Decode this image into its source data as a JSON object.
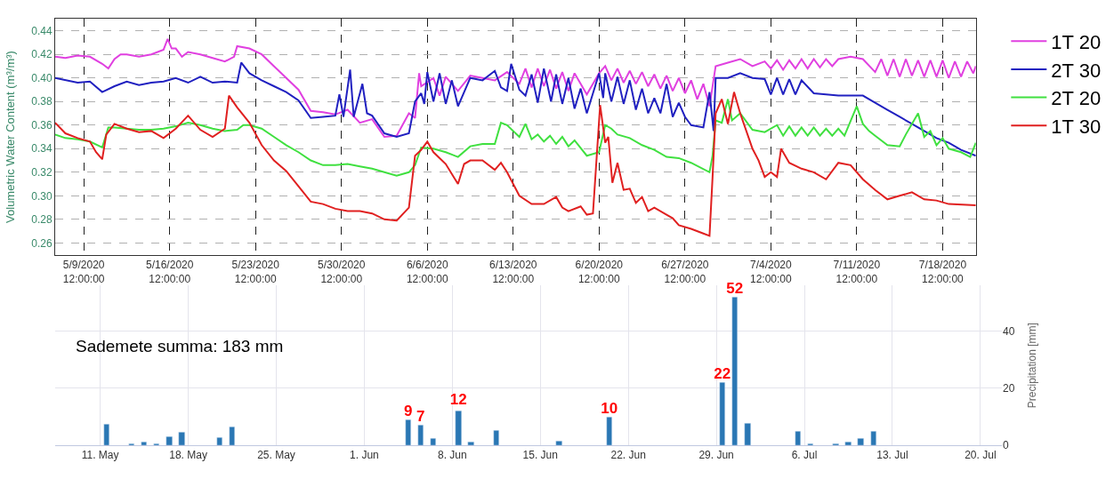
{
  "chart_data": [
    {
      "type": "line",
      "ylabel": "Volumetric Water Content (m³/m³)",
      "xlim": [
        "2020-05-07T04:00",
        "2020-07-21T05:00"
      ],
      "xticks": [
        {
          "value": "2020-05-09T12:00",
          "label": "5/9/2020\n12:00:00"
        },
        {
          "value": "2020-05-16T12:00",
          "label": "5/16/2020\n12:00:00"
        },
        {
          "value": "2020-05-23T12:00",
          "label": "5/23/2020\n12:00:00"
        },
        {
          "value": "2020-05-30T12:00",
          "label": "5/30/2020\n12:00:00"
        },
        {
          "value": "2020-06-06T12:00",
          "label": "6/6/2020\n12:00:00"
        },
        {
          "value": "2020-06-13T12:00",
          "label": "6/13/2020\n12:00:00"
        },
        {
          "value": "2020-06-20T12:00",
          "label": "6/20/2020\n12:00:00"
        },
        {
          "value": "2020-06-27T12:00",
          "label": "6/27/2020\n12:00:00"
        },
        {
          "value": "2020-07-04T12:00",
          "label": "7/4/2020\n12:00:00"
        },
        {
          "value": "2020-07-11T12:00",
          "label": "7/11/2020\n12:00:00"
        },
        {
          "value": "2020-07-18T12:00",
          "label": "7/18/2020\n12:00:00"
        }
      ],
      "ylim": [
        0.25,
        0.45
      ],
      "yticks": [
        {
          "value": 0.26,
          "label": "0.26"
        },
        {
          "value": 0.28,
          "label": "0.28"
        },
        {
          "value": 0.3,
          "label": "0.30"
        },
        {
          "value": 0.32,
          "label": "0.32"
        },
        {
          "value": 0.34,
          "label": "0.34"
        },
        {
          "value": 0.36,
          "label": "0.36"
        },
        {
          "value": 0.38,
          "label": "0.38"
        },
        {
          "value": 0.4,
          "label": "0.40"
        },
        {
          "value": 0.42,
          "label": "0.42"
        },
        {
          "value": 0.44,
          "label": "0.44"
        }
      ],
      "grid": true,
      "legend": "right",
      "line_style": "solid",
      "series": [
        {
          "name": "1T 20",
          "color": "#e040e0",
          "x": [
            "2020-05-07T04:00",
            "2020-05-08",
            "2020-05-09",
            "2020-05-10",
            "2020-05-11",
            "2020-05-11T12:00",
            "2020-05-12",
            "2020-05-12T12:00",
            "2020-05-13",
            "2020-05-14",
            "2020-05-15",
            "2020-05-16",
            "2020-05-16T08:00",
            "2020-05-16T16:00",
            "2020-05-17",
            "2020-05-17T12:00",
            "2020-05-18",
            "2020-05-19",
            "2020-05-20",
            "2020-05-21",
            "2020-05-21T18:00",
            "2020-05-22",
            "2020-05-23",
            "2020-05-24",
            "2020-05-25",
            "2020-05-26",
            "2020-05-27",
            "2020-05-28",
            "2020-05-29",
            "2020-05-30",
            "2020-05-31",
            "2020-06-01",
            "2020-06-02",
            "2020-06-03",
            "2020-06-04",
            "2020-06-05",
            "2020-06-05T12:00",
            "2020-06-05T20:00",
            "2020-06-06",
            "2020-06-07",
            "2020-06-07T12:00",
            "2020-06-08",
            "2020-06-09",
            "2020-06-10",
            "2020-06-11",
            "2020-06-12",
            "2020-06-13",
            "2020-06-14",
            "2020-06-14T12:00",
            "2020-06-15",
            "2020-06-15T12:00",
            "2020-06-16",
            "2020-06-16T12:00",
            "2020-06-17",
            "2020-06-17T12:00",
            "2020-06-18",
            "2020-06-18T12:00",
            "2020-06-19T12:00",
            "2020-06-20T12:00",
            "2020-06-21",
            "2020-06-21T12:00",
            "2020-06-22",
            "2020-06-22T12:00",
            "2020-06-23",
            "2020-06-23T12:00",
            "2020-06-24",
            "2020-06-24T12:00",
            "2020-06-25",
            "2020-06-25T12:00",
            "2020-06-26",
            "2020-06-26T12:00",
            "2020-06-27",
            "2020-06-27T12:00",
            "2020-06-28",
            "2020-06-28T12:00",
            "2020-06-29",
            "2020-06-29T12:00",
            "2020-06-30",
            "2020-07-01",
            "2020-07-02",
            "2020-07-03",
            "2020-07-04",
            "2020-07-04T12:00",
            "2020-07-05",
            "2020-07-05T12:00",
            "2020-07-06",
            "2020-07-06T12:00",
            "2020-07-07",
            "2020-07-07T12:00",
            "2020-07-08",
            "2020-07-08T12:00",
            "2020-07-09",
            "2020-07-09T12:00",
            "2020-07-10",
            "2020-07-11",
            "2020-07-12",
            "2020-07-13",
            "2020-07-13T12:00",
            "2020-07-14",
            "2020-07-14T12:00",
            "2020-07-15",
            "2020-07-15T12:00",
            "2020-07-16",
            "2020-07-16T12:00",
            "2020-07-17",
            "2020-07-17T12:00",
            "2020-07-18",
            "2020-07-18T12:00",
            "2020-07-19",
            "2020-07-19T12:00",
            "2020-07-20",
            "2020-07-20T12:00",
            "2020-07-21",
            "2020-07-21T05:00"
          ],
          "values": [
            0.418,
            0.417,
            0.419,
            0.418,
            0.412,
            0.408,
            0.416,
            0.42,
            0.42,
            0.418,
            0.42,
            0.424,
            0.433,
            0.425,
            0.425,
            0.418,
            0.422,
            0.42,
            0.417,
            0.414,
            0.418,
            0.427,
            0.425,
            0.42,
            0.41,
            0.4,
            0.39,
            0.372,
            0.371,
            0.369,
            0.373,
            0.362,
            0.365,
            0.35,
            0.351,
            0.37,
            0.366,
            0.404,
            0.393,
            0.4,
            0.385,
            0.401,
            0.389,
            0.402,
            0.4,
            0.398,
            0.405,
            0.395,
            0.408,
            0.392,
            0.408,
            0.393,
            0.407,
            0.391,
            0.405,
            0.389,
            0.404,
            0.386,
            0.404,
            0.41,
            0.398,
            0.408,
            0.396,
            0.406,
            0.395,
            0.405,
            0.393,
            0.403,
            0.391,
            0.402,
            0.389,
            0.4,
            0.387,
            0.398,
            0.382,
            0.395,
            0.376,
            0.41,
            0.413,
            0.416,
            0.41,
            0.414,
            0.408,
            0.415,
            0.407,
            0.415,
            0.408,
            0.416,
            0.408,
            0.416,
            0.409,
            0.416,
            0.41,
            0.416,
            0.418,
            0.416,
            0.405,
            0.416,
            0.402,
            0.416,
            0.401,
            0.416,
            0.402,
            0.415,
            0.401,
            0.415,
            0.401,
            0.415,
            0.4,
            0.414,
            0.401,
            0.414,
            0.404,
            0.41
          ]
        },
        {
          "name": "2T 30",
          "color": "#2020c0",
          "x": [
            "2020-05-07T04:00",
            "2020-05-09",
            "2020-05-10",
            "2020-05-11",
            "2020-05-12",
            "2020-05-13",
            "2020-05-14",
            "2020-05-15",
            "2020-05-16",
            "2020-05-17",
            "2020-05-18",
            "2020-05-19",
            "2020-05-20",
            "2020-05-21",
            "2020-05-22",
            "2020-05-22T08:00",
            "2020-05-23",
            "2020-05-24",
            "2020-05-25",
            "2020-05-26",
            "2020-05-27",
            "2020-05-28",
            "2020-05-29",
            "2020-05-30",
            "2020-05-30T08:00",
            "2020-05-30T16:00",
            "2020-05-31T05:00",
            "2020-05-31T12:00",
            "2020-06-01T05:00",
            "2020-06-01T14:00",
            "2020-06-02",
            "2020-06-03",
            "2020-06-04",
            "2020-06-05",
            "2020-06-05T12:00",
            "2020-06-06",
            "2020-06-06T06:00",
            "2020-06-06T12:00",
            "2020-06-07",
            "2020-06-07T12:00",
            "2020-06-08",
            "2020-06-08T12:00",
            "2020-06-09",
            "2020-06-10",
            "2020-06-11",
            "2020-06-12",
            "2020-06-12T12:00",
            "2020-06-13",
            "2020-06-13T08:00",
            "2020-06-14",
            "2020-06-14T12:00",
            "2020-06-15",
            "2020-06-15T12:00",
            "2020-06-16",
            "2020-06-16T14:00",
            "2020-06-17",
            "2020-06-17T12:00",
            "2020-06-18",
            "2020-06-18T12:00",
            "2020-06-19",
            "2020-06-19T12:00",
            "2020-06-20T12:00",
            "2020-06-20T20:00",
            "2020-06-21",
            "2020-06-21T12:00",
            "2020-06-22",
            "2020-06-22T12:00",
            "2020-06-23",
            "2020-06-23T12:00",
            "2020-06-24",
            "2020-06-24T12:00",
            "2020-06-25",
            "2020-06-25T12:00",
            "2020-06-26",
            "2020-06-26T12:00",
            "2020-06-27",
            "2020-06-27T12:00",
            "2020-06-28",
            "2020-06-29",
            "2020-06-29T12:00",
            "2020-06-29T20:00",
            "2020-06-30",
            "2020-07-01",
            "2020-07-02",
            "2020-07-03",
            "2020-07-04",
            "2020-07-04T12:00",
            "2020-07-05",
            "2020-07-05T12:00",
            "2020-07-06",
            "2020-07-06T12:00",
            "2020-07-07",
            "2020-07-08",
            "2020-07-09",
            "2020-07-10",
            "2020-07-11",
            "2020-07-12",
            "2020-07-13",
            "2020-07-14",
            "2020-07-15",
            "2020-07-16",
            "2020-07-17",
            "2020-07-18",
            "2020-07-19",
            "2020-07-20",
            "2020-07-21T05:00"
          ],
          "values": [
            0.4,
            0.396,
            0.397,
            0.388,
            0.393,
            0.397,
            0.394,
            0.396,
            0.397,
            0.4,
            0.396,
            0.401,
            0.396,
            0.397,
            0.396,
            0.413,
            0.404,
            0.398,
            0.393,
            0.388,
            0.381,
            0.366,
            0.367,
            0.368,
            0.386,
            0.367,
            0.407,
            0.367,
            0.395,
            0.37,
            0.368,
            0.353,
            0.35,
            0.353,
            0.38,
            0.387,
            0.378,
            0.405,
            0.38,
            0.404,
            0.378,
            0.398,
            0.376,
            0.4,
            0.398,
            0.406,
            0.392,
            0.389,
            0.412,
            0.39,
            0.385,
            0.403,
            0.379,
            0.408,
            0.38,
            0.403,
            0.378,
            0.4,
            0.374,
            0.391,
            0.37,
            0.404,
            0.383,
            0.404,
            0.38,
            0.401,
            0.378,
            0.398,
            0.373,
            0.391,
            0.37,
            0.383,
            0.37,
            0.395,
            0.367,
            0.379,
            0.367,
            0.36,
            0.358,
            0.388,
            0.355,
            0.4,
            0.4,
            0.404,
            0.4,
            0.399,
            0.386,
            0.4,
            0.386,
            0.399,
            0.386,
            0.398,
            0.387,
            0.386,
            0.385,
            0.385,
            0.385,
            0.379,
            0.373,
            0.367,
            0.361,
            0.355,
            0.349,
            0.345,
            0.339,
            0.334
          ]
        },
        {
          "name": "2T 20",
          "color": "#40e040",
          "x": [
            "2020-05-07T04:00",
            "2020-05-08",
            "2020-05-09",
            "2020-05-10",
            "2020-05-11",
            "2020-05-11T12:00",
            "2020-05-12",
            "2020-05-13",
            "2020-05-14",
            "2020-05-15",
            "2020-05-16",
            "2020-05-17",
            "2020-05-18",
            "2020-05-19",
            "2020-05-20",
            "2020-05-21",
            "2020-05-22",
            "2020-05-22T12:00",
            "2020-05-23",
            "2020-05-24",
            "2020-05-25",
            "2020-05-26",
            "2020-05-27",
            "2020-05-28",
            "2020-05-29",
            "2020-05-30",
            "2020-05-31",
            "2020-06-01",
            "2020-06-02",
            "2020-06-03",
            "2020-06-04",
            "2020-06-05",
            "2020-06-05T12:00",
            "2020-06-06",
            "2020-06-07",
            "2020-06-08",
            "2020-06-09",
            "2020-06-10",
            "2020-06-11",
            "2020-06-12",
            "2020-06-12T12:00",
            "2020-06-13",
            "2020-06-14",
            "2020-06-14T12:00",
            "2020-06-15",
            "2020-06-15T12:00",
            "2020-06-16",
            "2020-06-16T12:00",
            "2020-06-17",
            "2020-06-17T12:00",
            "2020-06-18",
            "2020-06-18T12:00",
            "2020-06-19T12:00",
            "2020-06-20T12:00",
            "2020-06-21",
            "2020-06-21T12:00",
            "2020-06-22",
            "2020-06-23",
            "2020-06-24",
            "2020-06-25",
            "2020-06-26",
            "2020-06-27",
            "2020-06-28",
            "2020-06-29T12:00",
            "2020-06-29T18:00",
            "2020-06-30",
            "2020-06-30T12:00",
            "2020-07-01",
            "2020-07-01T08:00",
            "2020-07-02",
            "2020-07-03",
            "2020-07-04",
            "2020-07-05",
            "2020-07-05T12:00",
            "2020-07-06",
            "2020-07-06T12:00",
            "2020-07-07",
            "2020-07-07T12:00",
            "2020-07-08",
            "2020-07-08T12:00",
            "2020-07-09",
            "2020-07-09T12:00",
            "2020-07-10",
            "2020-07-10T12:00",
            "2020-07-11T12:00",
            "2020-07-12",
            "2020-07-12T12:00",
            "2020-07-13",
            "2020-07-14",
            "2020-07-15",
            "2020-07-15T12:00",
            "2020-07-16T12:00",
            "2020-07-17",
            "2020-07-17T12:00",
            "2020-07-18",
            "2020-07-18T12:00",
            "2020-07-19",
            "2020-07-20",
            "2020-07-20T18:00",
            "2020-07-21T05:00"
          ],
          "values": [
            0.352,
            0.349,
            0.348,
            0.346,
            0.341,
            0.358,
            0.358,
            0.357,
            0.356,
            0.356,
            0.357,
            0.359,
            0.362,
            0.36,
            0.357,
            0.355,
            0.356,
            0.36,
            0.36,
            0.357,
            0.35,
            0.343,
            0.337,
            0.33,
            0.326,
            0.326,
            0.327,
            0.325,
            0.323,
            0.32,
            0.317,
            0.32,
            0.326,
            0.341,
            0.34,
            0.337,
            0.333,
            0.342,
            0.344,
            0.344,
            0.362,
            0.36,
            0.35,
            0.361,
            0.348,
            0.352,
            0.346,
            0.351,
            0.344,
            0.35,
            0.342,
            0.347,
            0.334,
            0.337,
            0.36,
            0.357,
            0.352,
            0.349,
            0.343,
            0.339,
            0.333,
            0.332,
            0.328,
            0.32,
            0.334,
            0.364,
            0.362,
            0.382,
            0.364,
            0.37,
            0.356,
            0.354,
            0.36,
            0.351,
            0.359,
            0.351,
            0.358,
            0.351,
            0.358,
            0.351,
            0.357,
            0.351,
            0.357,
            0.351,
            0.376,
            0.361,
            0.355,
            0.351,
            0.343,
            0.342,
            0.352,
            0.37,
            0.35,
            0.355,
            0.343,
            0.349,
            0.34,
            0.337,
            0.333,
            0.345
          ]
        },
        {
          "name": "1T 30",
          "color": "#e02020",
          "x": [
            "2020-05-07T04:00",
            "2020-05-08",
            "2020-05-09",
            "2020-05-10",
            "2020-05-10T12:00",
            "2020-05-11",
            "2020-05-11T08:00",
            "2020-05-12",
            "2020-05-13",
            "2020-05-14",
            "2020-05-15",
            "2020-05-16",
            "2020-05-17",
            "2020-05-18",
            "2020-05-19",
            "2020-05-20",
            "2020-05-21",
            "2020-05-21T08:00",
            "2020-05-22",
            "2020-05-23",
            "2020-05-24",
            "2020-05-25",
            "2020-05-26",
            "2020-05-27",
            "2020-05-28",
            "2020-05-29",
            "2020-05-30",
            "2020-05-31",
            "2020-06-01",
            "2020-06-02",
            "2020-06-03",
            "2020-06-04",
            "2020-06-05",
            "2020-06-05T12:00",
            "2020-06-06",
            "2020-06-06T12:00",
            "2020-06-07",
            "2020-06-08",
            "2020-06-09",
            "2020-06-09T12:00",
            "2020-06-10",
            "2020-06-11",
            "2020-06-12",
            "2020-06-12T12:00",
            "2020-06-13",
            "2020-06-14",
            "2020-06-15",
            "2020-06-16",
            "2020-06-17",
            "2020-06-17T12:00",
            "2020-06-18",
            "2020-06-19",
            "2020-06-19T12:00",
            "2020-06-20",
            "2020-06-20T14:00",
            "2020-06-21",
            "2020-06-21T06:00",
            "2020-06-21T14:00",
            "2020-06-22",
            "2020-06-22T12:00",
            "2020-06-23",
            "2020-06-23T12:00",
            "2020-06-24",
            "2020-06-24T12:00",
            "2020-06-25",
            "2020-06-26",
            "2020-06-26T12:00",
            "2020-06-27",
            "2020-06-28",
            "2020-06-29",
            "2020-06-29T12:00",
            "2020-06-29T18:00",
            "2020-06-30",
            "2020-06-30T12:00",
            "2020-07-01",
            "2020-07-01T12:00",
            "2020-07-02",
            "2020-07-02T12:00",
            "2020-07-03",
            "2020-07-03T12:00",
            "2020-07-04",
            "2020-07-04T12:00",
            "2020-07-05",
            "2020-07-05T08:00",
            "2020-07-06",
            "2020-07-07",
            "2020-07-08",
            "2020-07-09",
            "2020-07-10",
            "2020-07-11",
            "2020-07-12",
            "2020-07-13",
            "2020-07-14",
            "2020-07-15",
            "2020-07-16",
            "2020-07-17",
            "2020-07-18",
            "2020-07-19",
            "2020-07-21T05:00"
          ],
          "values": [
            0.362,
            0.353,
            0.349,
            0.346,
            0.337,
            0.331,
            0.352,
            0.361,
            0.357,
            0.354,
            0.355,
            0.349,
            0.357,
            0.368,
            0.356,
            0.35,
            0.357,
            0.385,
            0.375,
            0.362,
            0.343,
            0.33,
            0.321,
            0.308,
            0.295,
            0.293,
            0.289,
            0.287,
            0.287,
            0.285,
            0.28,
            0.279,
            0.29,
            0.334,
            0.339,
            0.346,
            0.337,
            0.327,
            0.31,
            0.327,
            0.33,
            0.33,
            0.322,
            0.328,
            0.32,
            0.3,
            0.293,
            0.293,
            0.299,
            0.29,
            0.287,
            0.291,
            0.284,
            0.285,
            0.377,
            0.345,
            0.35,
            0.311,
            0.328,
            0.305,
            0.306,
            0.294,
            0.299,
            0.287,
            0.29,
            0.284,
            0.281,
            0.275,
            0.272,
            0.268,
            0.266,
            0.316,
            0.37,
            0.382,
            0.361,
            0.388,
            0.37,
            0.355,
            0.34,
            0.33,
            0.316,
            0.32,
            0.316,
            0.34,
            0.328,
            0.323,
            0.32,
            0.314,
            0.328,
            0.326,
            0.314,
            0.305,
            0.297,
            0.3,
            0.303,
            0.297,
            0.296,
            0.293,
            0.292
          ]
        }
      ]
    },
    {
      "type": "bar",
      "y2label": "Precipitation [mm]",
      "annotations": [
        "Sademete summa: 183 mm"
      ],
      "xlim": [
        "2020-05-07T10:00",
        "2020-07-21T17:00"
      ],
      "xticks": [
        {
          "value": "2020-05-11",
          "label": "11. May"
        },
        {
          "value": "2020-05-18",
          "label": "18. May"
        },
        {
          "value": "2020-05-25",
          "label": "25. May"
        },
        {
          "value": "2020-06-01",
          "label": "1. Jun"
        },
        {
          "value": "2020-06-08",
          "label": "8. Jun"
        },
        {
          "value": "2020-06-15",
          "label": "15. Jun"
        },
        {
          "value": "2020-06-22",
          "label": "22. Jun"
        },
        {
          "value": "2020-06-29",
          "label": "29. Jun"
        },
        {
          "value": "2020-07-06",
          "label": "6. Jul"
        },
        {
          "value": "2020-07-13",
          "label": "13. Jul"
        },
        {
          "value": "2020-07-20",
          "label": "20. Jul"
        }
      ],
      "y2lim": [
        0,
        56
      ],
      "y2ticks": [
        0,
        20,
        40
      ],
      "grid": true,
      "series": [
        {
          "color": "#2a77b4",
          "axis": "y2",
          "x": [
            "2020-05-11T12:00",
            "2020-05-13T12:00",
            "2020-05-14T12:00",
            "2020-05-15T12:00",
            "2020-05-16T12:00",
            "2020-05-17T12:00",
            "2020-05-20T12:00",
            "2020-05-21T12:00",
            "2020-06-04T12:00",
            "2020-06-05T12:00",
            "2020-06-06T12:00",
            "2020-06-08T12:00",
            "2020-06-09T12:00",
            "2020-06-11T12:00",
            "2020-06-16T12:00",
            "2020-06-20T12:00",
            "2020-06-29T12:00",
            "2020-06-30T12:00",
            "2020-07-01T12:00",
            "2020-07-05T12:00",
            "2020-07-06T12:00",
            "2020-07-08T12:00",
            "2020-07-09T12:00",
            "2020-07-10T12:00",
            "2020-07-11T12:00"
          ],
          "values": [
            7.4,
            0.5,
            1.1,
            0.6,
            3.1,
            4.6,
            2.6,
            6.4,
            9,
            7,
            2.5,
            12,
            1.1,
            5.3,
            1.3,
            10,
            22,
            52,
            7.8,
            4.9,
            0.6,
            0.6,
            1.1,
            2.5,
            4.9
          ],
          "value_labels": [
            null,
            null,
            null,
            null,
            null,
            null,
            null,
            null,
            "9",
            "7",
            null,
            "12",
            null,
            null,
            null,
            "10",
            "22",
            "52",
            null,
            null,
            null,
            null,
            null,
            null,
            null
          ]
        }
      ]
    }
  ]
}
